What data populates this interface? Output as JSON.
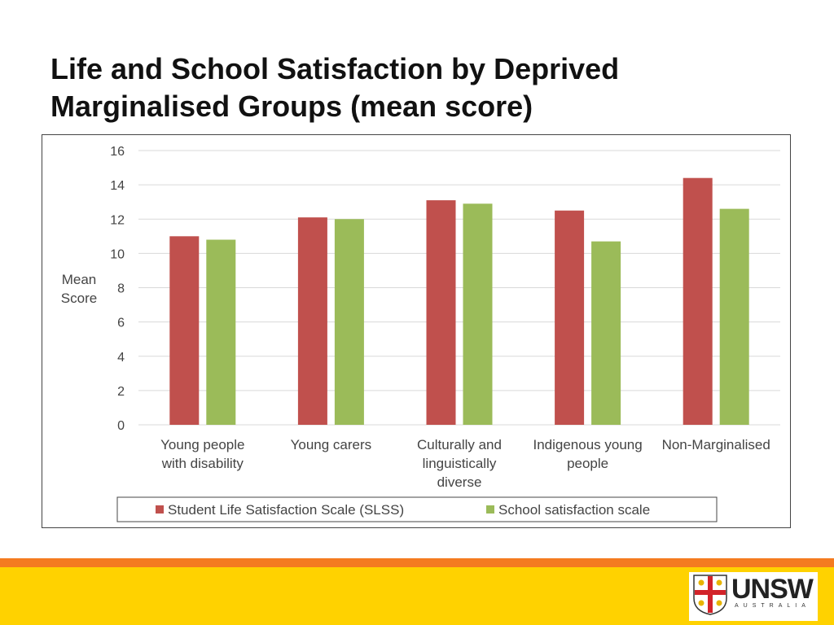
{
  "slide": {
    "title_line1": "Life and School Satisfaction by Deprived",
    "title_line2": "Marginalised Groups (mean score)"
  },
  "chart_data": {
    "type": "bar",
    "title": "",
    "xlabel": "",
    "ylabel": "Mean Score",
    "ylabel_lines": [
      "Mean",
      "Score"
    ],
    "ylim": [
      0,
      16
    ],
    "yticks": [
      0,
      2,
      4,
      6,
      8,
      10,
      12,
      14,
      16
    ],
    "grid": true,
    "legend_position": "bottom",
    "categories": [
      [
        "Young people",
        "with disability"
      ],
      [
        "Young carers"
      ],
      [
        "Culturally and",
        "linguistically",
        "diverse"
      ],
      [
        "Indigenous young",
        "people"
      ],
      [
        "Non-Marginalised"
      ]
    ],
    "series": [
      {
        "name": "Student Life Satisfaction Scale (SLSS)",
        "color": "#c0504d",
        "values": [
          11.0,
          12.1,
          13.1,
          12.5,
          14.4
        ]
      },
      {
        "name": "School satisfaction  scale",
        "color": "#9bbb59",
        "values": [
          10.8,
          12.0,
          12.9,
          10.7,
          12.6
        ]
      }
    ]
  },
  "logo": {
    "word": "UNSW",
    "sub": "AUSTRALIA",
    "colors": {
      "orange": "#f47b20",
      "yellow": "#ffd200"
    }
  }
}
